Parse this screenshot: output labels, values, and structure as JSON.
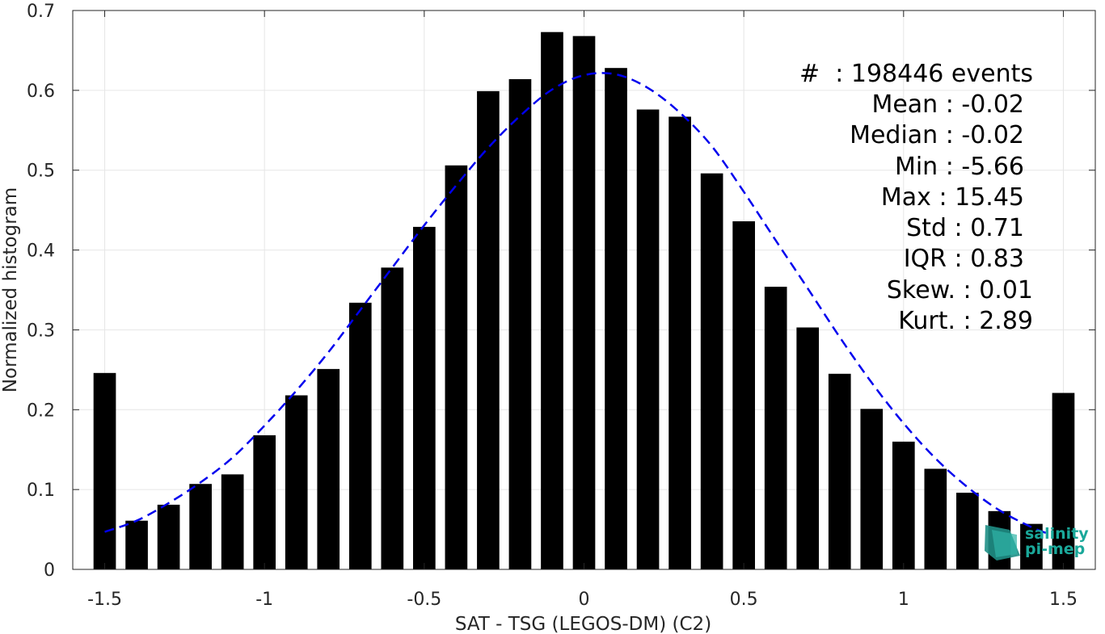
{
  "chart_data": {
    "type": "bar",
    "xlabel": "SAT - TSG (LEGOS-DM) (C2)",
    "ylabel": "Normalized histogram",
    "xlim": [
      -1.6,
      1.6
    ],
    "ylim": [
      0,
      0.7
    ],
    "xticks": [
      -1.5,
      -1,
      -0.5,
      0,
      0.5,
      1,
      1.5
    ],
    "xtick_labels": [
      "-1.5",
      "-1",
      "-0.5",
      "0",
      "0.5",
      "1",
      "1.5"
    ],
    "yticks": [
      0,
      0.1,
      0.2,
      0.3,
      0.4,
      0.5,
      0.6,
      0.7
    ],
    "ytick_labels": [
      "0",
      "0.1",
      "0.2",
      "0.3",
      "0.4",
      "0.5",
      "0.6",
      "0.7"
    ],
    "grid": true,
    "bar_color": "#000000",
    "bars": {
      "x": [
        -1.5,
        -1.4,
        -1.3,
        -1.2,
        -1.1,
        -1.0,
        -0.9,
        -0.8,
        -0.7,
        -0.6,
        -0.5,
        -0.4,
        -0.3,
        -0.2,
        -0.1,
        0.0,
        0.1,
        0.2,
        0.3,
        0.4,
        0.5,
        0.6,
        0.7,
        0.8,
        0.9,
        1.0,
        1.1,
        1.2,
        1.3,
        1.4,
        1.5
      ],
      "values": [
        0.246,
        0.061,
        0.081,
        0.107,
        0.119,
        0.168,
        0.218,
        0.251,
        0.334,
        0.378,
        0.429,
        0.506,
        0.599,
        0.614,
        0.673,
        0.668,
        0.628,
        0.576,
        0.567,
        0.496,
        0.436,
        0.354,
        0.303,
        0.245,
        0.201,
        0.16,
        0.126,
        0.096,
        0.073,
        0.057,
        0.221
      ]
    },
    "fit_curve": {
      "type": "gaussian",
      "color": "#0000ee",
      "style": "dashed",
      "x": [
        -1.5,
        -1.4,
        -1.3,
        -1.2,
        -1.1,
        -1.0,
        -0.9,
        -0.8,
        -0.7,
        -0.6,
        -0.5,
        -0.4,
        -0.3,
        -0.2,
        -0.1,
        0.0,
        0.1,
        0.2,
        0.3,
        0.4,
        0.5,
        0.6,
        0.7,
        0.8,
        0.9,
        1.0,
        1.1,
        1.2,
        1.3,
        1.4,
        1.45
      ],
      "values": [
        0.047,
        0.061,
        0.083,
        0.109,
        0.14,
        0.18,
        0.224,
        0.272,
        0.325,
        0.378,
        0.431,
        0.481,
        0.528,
        0.568,
        0.601,
        0.619,
        0.62,
        0.603,
        0.572,
        0.53,
        0.473,
        0.412,
        0.352,
        0.291,
        0.234,
        0.183,
        0.139,
        0.103,
        0.074,
        0.053,
        0.045
      ]
    }
  },
  "stats": [
    {
      "label": "#  : 198446 events"
    },
    {
      "label": "Mean : -0.02"
    },
    {
      "label": "Median : -0.02"
    },
    {
      "label": "Min : -5.66"
    },
    {
      "label": "Max : 15.45"
    },
    {
      "label": "Std : 0.71"
    },
    {
      "label": "IQR : 0.83"
    },
    {
      "label": "Skew. : 0.01"
    },
    {
      "label": "Kurt. : 2.89"
    }
  ],
  "logo": {
    "line1": "salinity",
    "line2": "pi-mep",
    "color": "#1aa89a"
  }
}
